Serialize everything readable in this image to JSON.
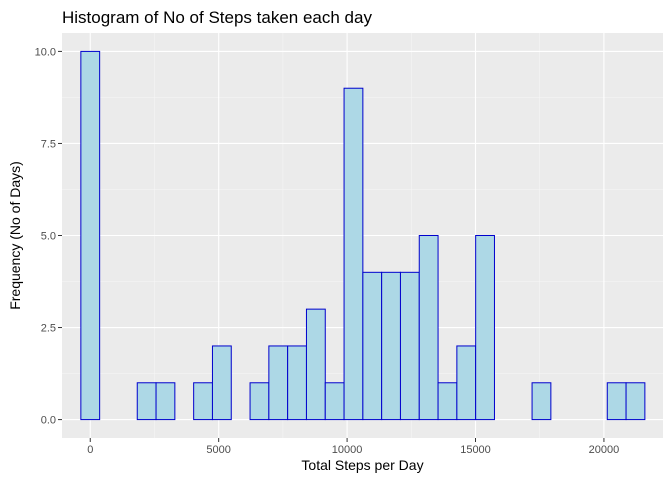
{
  "chart_data": {
    "type": "bar",
    "title": "Histogram of No of Steps taken each day",
    "xlabel": "Total Steps per Day",
    "ylabel": "Frequency (No of Days)",
    "xlim": [
      -1100,
      22300
    ],
    "ylim": [
      -0.5,
      10.5
    ],
    "x_ticks": [
      0,
      5000,
      10000,
      15000,
      20000
    ],
    "y_ticks": [
      0,
      2.5,
      5,
      7.5,
      10
    ],
    "x_tick_labels": [
      "0",
      "5000",
      "10000",
      "15000",
      "20000"
    ],
    "y_tick_labels": [
      "0.0",
      "2.5",
      "5.0",
      "7.5",
      "10.0"
    ],
    "bin_width": 732,
    "bin_centers": [
      0,
      732,
      1464,
      2196,
      2928,
      3660,
      4392,
      5124,
      5856,
      6588,
      7320,
      8052,
      8784,
      9516,
      10248,
      10980,
      11712,
      12444,
      13176,
      13908,
      14640,
      15372,
      16104,
      16836,
      17568,
      18300,
      19032,
      19764,
      20496,
      21228
    ],
    "values": [
      10,
      0,
      0,
      1,
      1,
      0,
      1,
      2,
      0,
      1,
      2,
      2,
      3,
      1,
      9,
      4,
      4,
      4,
      5,
      1,
      2,
      5,
      0,
      0,
      1,
      0,
      0,
      0,
      1,
      1
    ],
    "grid": true,
    "colors": {
      "bar_fill": "#add8e6",
      "bar_stroke": "#0000cd",
      "panel_bg": "#ebebeb",
      "grid_major": "#ffffff",
      "grid_minor": "#f5f5f5"
    }
  }
}
